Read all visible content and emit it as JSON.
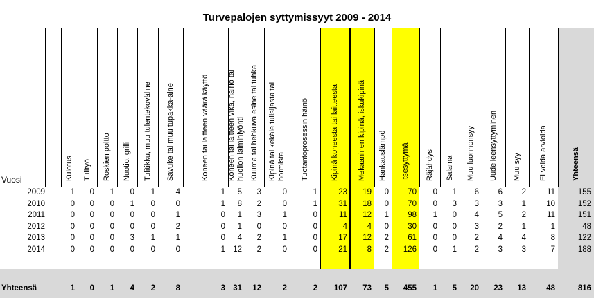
{
  "title": "Turvepalojen syttymissyyt 2009 - 2014",
  "row_header_label": "Vuosi",
  "highlight_color": "#ffff00",
  "total_col_color": "#d9d9d9",
  "total_row_color": "#d9d9d9",
  "columns": [
    {
      "label": "Kulotus",
      "highlight": false
    },
    {
      "label": "Tulityö",
      "highlight": false
    },
    {
      "label": "Roskien poltto",
      "highlight": false
    },
    {
      "label": "Nuotio, grilli",
      "highlight": false
    },
    {
      "label": "Tulitikku, muu tulentekoväline",
      "highlight": false
    },
    {
      "label": "Savuke tai muu tupakka-aine",
      "highlight": false
    },
    {
      "label": "Koneen tai laitteen väärä käyttö",
      "highlight": false
    },
    {
      "label": "Koneen tai laitteen vika, häiriö tai\nhuollon laiminlyönti",
      "highlight": false
    },
    {
      "label": "Kuuma tai hehkuva esine tai tuhka",
      "highlight": false
    },
    {
      "label": "Kipinä tai kekäle tulisijasta tai\nhormista",
      "highlight": false
    },
    {
      "label": "Tuotantoprosessin häiriö",
      "highlight": false
    },
    {
      "label": "Kipinä koneesta tai laitteesta",
      "highlight": true
    },
    {
      "label": "Mekaaninen kipinä, iskukipinä",
      "highlight": true
    },
    {
      "label": "Hankauslämpö",
      "highlight": false
    },
    {
      "label": "Itsesyttymä",
      "highlight": true
    },
    {
      "label": "Räjähdys",
      "highlight": false
    },
    {
      "label": "Salama",
      "highlight": false
    },
    {
      "label": "Muu luonnonsyy",
      "highlight": false
    },
    {
      "label": "Uudelleensyttyminen",
      "highlight": false
    },
    {
      "label": "Muu syy",
      "highlight": false
    },
    {
      "label": "Ei voida arvioida",
      "highlight": false
    },
    {
      "label": "Yhteensä",
      "highlight": false,
      "bold": true
    }
  ],
  "rows": [
    {
      "year": "2009",
      "values": [
        "1",
        "0",
        "1",
        "0",
        "1",
        "4",
        "1",
        "5",
        "3",
        "0",
        "1",
        "23",
        "19",
        "0",
        "70",
        "0",
        "1",
        "6",
        "6",
        "2",
        "11",
        "155"
      ]
    },
    {
      "year": "2010",
      "values": [
        "0",
        "0",
        "0",
        "1",
        "0",
        "0",
        "1",
        "8",
        "2",
        "0",
        "1",
        "31",
        "18",
        "0",
        "70",
        "0",
        "3",
        "3",
        "3",
        "1",
        "10",
        "152"
      ]
    },
    {
      "year": "2011",
      "values": [
        "0",
        "0",
        "0",
        "0",
        "0",
        "1",
        "0",
        "1",
        "3",
        "1",
        "0",
        "11",
        "12",
        "1",
        "98",
        "1",
        "0",
        "4",
        "5",
        "2",
        "11",
        "151"
      ]
    },
    {
      "year": "2012",
      "values": [
        "0",
        "0",
        "0",
        "0",
        "0",
        "2",
        "0",
        "1",
        "0",
        "0",
        "0",
        "4",
        "4",
        "0",
        "30",
        "0",
        "0",
        "3",
        "2",
        "1",
        "1",
        "48"
      ]
    },
    {
      "year": "2013",
      "values": [
        "0",
        "0",
        "0",
        "3",
        "1",
        "1",
        "0",
        "4",
        "2",
        "1",
        "0",
        "17",
        "12",
        "2",
        "61",
        "0",
        "0",
        "2",
        "4",
        "4",
        "8",
        "122"
      ]
    },
    {
      "year": "2014",
      "values": [
        "0",
        "0",
        "0",
        "0",
        "0",
        "0",
        "1",
        "12",
        "2",
        "0",
        "0",
        "21",
        "8",
        "2",
        "126",
        "0",
        "1",
        "2",
        "3",
        "3",
        "7",
        "188"
      ]
    }
  ],
  "totals": {
    "label": "Yhteensä",
    "values": [
      "1",
      "0",
      "1",
      "4",
      "2",
      "8",
      "3",
      "31",
      "12",
      "2",
      "2",
      "107",
      "73",
      "5",
      "455",
      "1",
      "5",
      "20",
      "23",
      "13",
      "48",
      "816"
    ]
  }
}
